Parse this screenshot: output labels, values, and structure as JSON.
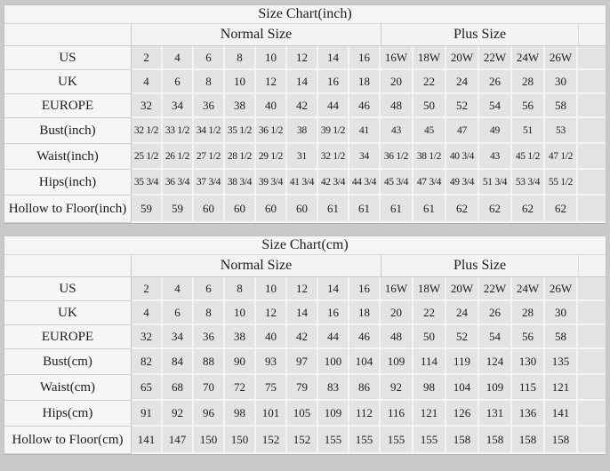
{
  "colors": {
    "page_background": "#c9c9c9",
    "table_background": "#f5f5f5",
    "data_cell_background": "#e3e3e3",
    "grid_line": "#c9c9c9",
    "cell_divider": "#f4f4f4",
    "text": "#1c1c1c"
  },
  "chart_data": [
    {
      "type": "table",
      "title": "Size Chart(inch)",
      "group_headers": [
        {
          "label": "Normal Size",
          "span": 8
        },
        {
          "label": "Plus Size",
          "span": 6
        }
      ],
      "rows": [
        {
          "label": "US",
          "values": [
            "2",
            "4",
            "6",
            "8",
            "10",
            "12",
            "14",
            "16",
            "16W",
            "18W",
            "20W",
            "22W",
            "24W",
            "26W"
          ]
        },
        {
          "label": "UK",
          "values": [
            "4",
            "6",
            "8",
            "10",
            "12",
            "14",
            "16",
            "18",
            "20",
            "22",
            "24",
            "26",
            "28",
            "30"
          ]
        },
        {
          "label": "EUROPE",
          "values": [
            "32",
            "34",
            "36",
            "38",
            "40",
            "42",
            "44",
            "46",
            "48",
            "50",
            "52",
            "54",
            "56",
            "58"
          ]
        },
        {
          "label": "Bust(inch)",
          "values": [
            "32 1/2",
            "33 1/2",
            "34 1/2",
            "35 1/2",
            "36 1/2",
            "38",
            "39 1/2",
            "41",
            "43",
            "45",
            "47",
            "49",
            "51",
            "53"
          ]
        },
        {
          "label": "Waist(inch)",
          "values": [
            "25 1/2",
            "26 1/2",
            "27 1/2",
            "28 1/2",
            "29 1/2",
            "31",
            "32 1/2",
            "34",
            "36 1/2",
            "38 1/2",
            "40 3/4",
            "43",
            "45 1/2",
            "47 1/2"
          ]
        },
        {
          "label": "Hips(inch)",
          "values": [
            "35 3/4",
            "36 3/4",
            "37 3/4",
            "38 3/4",
            "39 3/4",
            "41 3/4",
            "42 3/4",
            "44 3/4",
            "45 3/4",
            "47 3/4",
            "49 3/4",
            "51 3/4",
            "53 3/4",
            "55 1/2"
          ]
        },
        {
          "label": "Hollow to Floor(inch)",
          "values": [
            "59",
            "59",
            "60",
            "60",
            "60",
            "60",
            "61",
            "61",
            "61",
            "61",
            "62",
            "62",
            "62",
            "62"
          ]
        }
      ]
    },
    {
      "type": "table",
      "title": "Size Chart(cm)",
      "group_headers": [
        {
          "label": "Normal Size",
          "span": 8
        },
        {
          "label": "Plus Size",
          "span": 6
        }
      ],
      "rows": [
        {
          "label": "US",
          "values": [
            "2",
            "4",
            "6",
            "8",
            "10",
            "12",
            "14",
            "16",
            "16W",
            "18W",
            "20W",
            "22W",
            "24W",
            "26W"
          ]
        },
        {
          "label": "UK",
          "values": [
            "4",
            "6",
            "8",
            "10",
            "12",
            "14",
            "16",
            "18",
            "20",
            "22",
            "24",
            "26",
            "28",
            "30"
          ]
        },
        {
          "label": "EUROPE",
          "values": [
            "32",
            "34",
            "36",
            "38",
            "40",
            "42",
            "44",
            "46",
            "48",
            "50",
            "52",
            "54",
            "56",
            "58"
          ]
        },
        {
          "label": "Bust(cm)",
          "values": [
            "82",
            "84",
            "88",
            "90",
            "93",
            "97",
            "100",
            "104",
            "109",
            "114",
            "119",
            "124",
            "130",
            "135"
          ]
        },
        {
          "label": "Waist(cm)",
          "values": [
            "65",
            "68",
            "70",
            "72",
            "75",
            "79",
            "83",
            "86",
            "92",
            "98",
            "104",
            "109",
            "115",
            "121"
          ]
        },
        {
          "label": "Hips(cm)",
          "values": [
            "91",
            "92",
            "96",
            "98",
            "101",
            "105",
            "109",
            "112",
            "116",
            "121",
            "126",
            "131",
            "136",
            "141"
          ]
        },
        {
          "label": "Hollow to Floor(cm)",
          "values": [
            "141",
            "147",
            "150",
            "150",
            "152",
            "152",
            "155",
            "155",
            "155",
            "155",
            "158",
            "158",
            "158",
            "158"
          ]
        }
      ]
    }
  ]
}
